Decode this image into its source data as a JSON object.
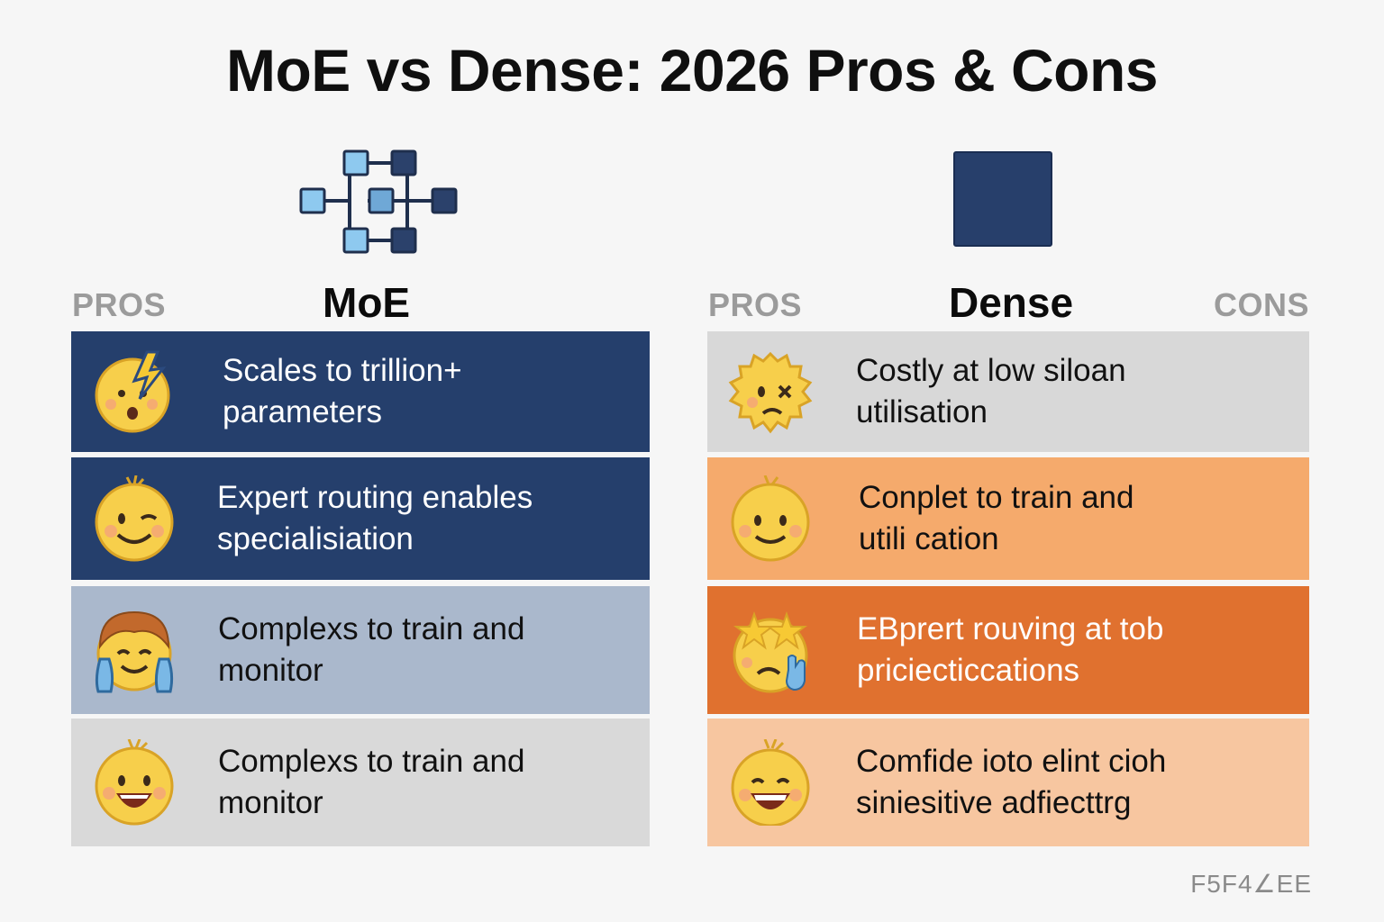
{
  "title": "MoE vs Dense: 2026 Pros & Cons",
  "left": {
    "pros_label": "PROS",
    "title": "MoE",
    "icon": "network-nodes-icon",
    "rows": [
      {
        "text": "Scales to trillion+\nparameters",
        "emoji": "lightning-face-icon",
        "bg": "#253f6c",
        "color": "#ffffff"
      },
      {
        "text": "Expert routing enables\nspecialisiation",
        "emoji": "winking-face-icon",
        "bg": "#253f6c",
        "color": "#ffffff"
      },
      {
        "text": "Complexs to train and\nmonitor",
        "emoji": "crying-face-icon",
        "bg": "#aab8cc",
        "color": "#111111"
      },
      {
        "text": "Complexs to train and\nmonitor",
        "emoji": "grinning-face-icon",
        "bg": "#d9d9d9",
        "color": "#111111"
      }
    ]
  },
  "right": {
    "pros_label": "PROS",
    "title": "Dense",
    "cons_label": "CONS",
    "icon": "solid-block-icon",
    "rows": [
      {
        "text": "Costly at low siloan\nutilisation",
        "emoji": "frazzled-face-icon",
        "bg": "#d8d8d8",
        "color": "#111111"
      },
      {
        "text": "Conplet to train and\nutili cation",
        "emoji": "smiling-face-icon",
        "bg": "#f5aa6c",
        "color": "#111111"
      },
      {
        "text": "EBprert rouving at tob\npriciecticcations",
        "emoji": "starry-eyed-face-icon",
        "bg": "#e0712f",
        "color": "#ffffff"
      },
      {
        "text": "Comfide ioto elint cioh\nsiniesitive adfiecttrg",
        "emoji": "laughing-face-icon",
        "bg": "#f7c6a0",
        "color": "#111111"
      }
    ]
  },
  "footer": "F5F4∠EE"
}
